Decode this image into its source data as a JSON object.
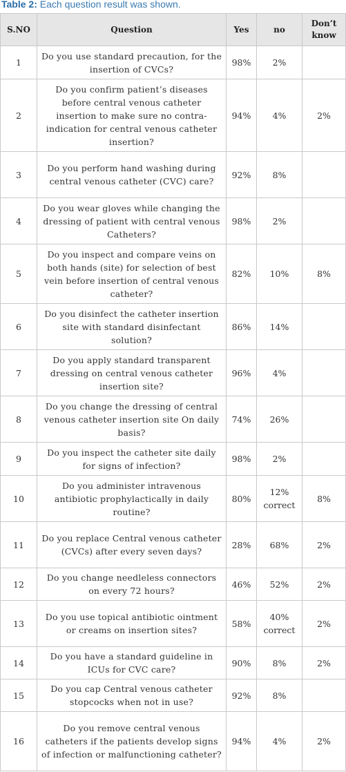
{
  "caption": {
    "label": "Table 2:",
    "text": " Each question result was shown."
  },
  "table": {
    "headers": [
      "S.NO",
      "Question",
      "Yes",
      "no",
      "Don’t know"
    ],
    "rows": [
      {
        "sno": "1",
        "question": "Do you use standard precaution, for the insertion of CVCs?",
        "yes": "98%",
        "no": "2%",
        "dont_know": ""
      },
      {
        "sno": "2",
        "question": "Do you confirm patient’s diseases before central venous catheter insertion to make sure no contra-indication for central venous catheter insertion?",
        "yes": "94%",
        "no": "4%",
        "dont_know": "2%"
      },
      {
        "sno": "3",
        "question": "Do you perform hand washing during central venous catheter (CVC) care?",
        "yes": "92%",
        "no": "8%",
        "dont_know": ""
      },
      {
        "sno": "4",
        "question": "Do you wear gloves while changing the dressing of patient with central venous Catheters?",
        "yes": "98%",
        "no": "2%",
        "dont_know": ""
      },
      {
        "sno": "5",
        "question": "Do you inspect and compare veins on both hands (site) for selection of best vein before insertion of central venous catheter?",
        "yes": "82%",
        "no": "10%",
        "dont_know": "8%"
      },
      {
        "sno": "6",
        "question": "Do you disinfect the catheter insertion site with standard disinfectant solution?",
        "yes": "86%",
        "no": "14%",
        "dont_know": ""
      },
      {
        "sno": "7",
        "question": "Do you apply standard transparent dressing on central venous catheter insertion site?",
        "yes": "96%",
        "no": "4%",
        "dont_know": ""
      },
      {
        "sno": "8",
        "question": "Do you change the dressing of central venous catheter insertion site On daily basis?",
        "yes": "74%",
        "no": "26%",
        "dont_know": ""
      },
      {
        "sno": "9",
        "question": "Do you inspect the catheter site daily for signs of infection?",
        "yes": "98%",
        "no": "2%",
        "dont_know": ""
      },
      {
        "sno": "10",
        "question": "Do you administer intravenous antibiotic prophylactically in daily routine?",
        "yes": "80%",
        "no": "12% correct",
        "dont_know": "8%"
      },
      {
        "sno": "11",
        "question": "Do you replace Central venous catheter (CVCs) after every seven days?",
        "yes": "28%",
        "no": "68%",
        "dont_know": "2%"
      },
      {
        "sno": "12",
        "question": "Do you change needleless connectors on every 72 hours?",
        "yes": "46%",
        "no": "52%",
        "dont_know": "2%"
      },
      {
        "sno": "13",
        "question": "Do you use topical antibiotic ointment or creams on insertion sites?",
        "yes": "58%",
        "no": "40% correct",
        "dont_know": "2%"
      },
      {
        "sno": "14",
        "question": "Do you have a standard guideline in ICUs for CVC care?",
        "yes": "90%",
        "no": "8%",
        "dont_know": "2%"
      },
      {
        "sno": "15",
        "question": "Do you cap Central venous catheter stopcocks when not in use?",
        "yes": "92%",
        "no": "8%",
        "dont_know": ""
      },
      {
        "sno": "16",
        "question": "Do you remove central venous catheters if the patients develop signs of infection or malfunctioning catheter?",
        "yes": "94%",
        "no": "4%",
        "dont_know": "2%"
      }
    ]
  }
}
